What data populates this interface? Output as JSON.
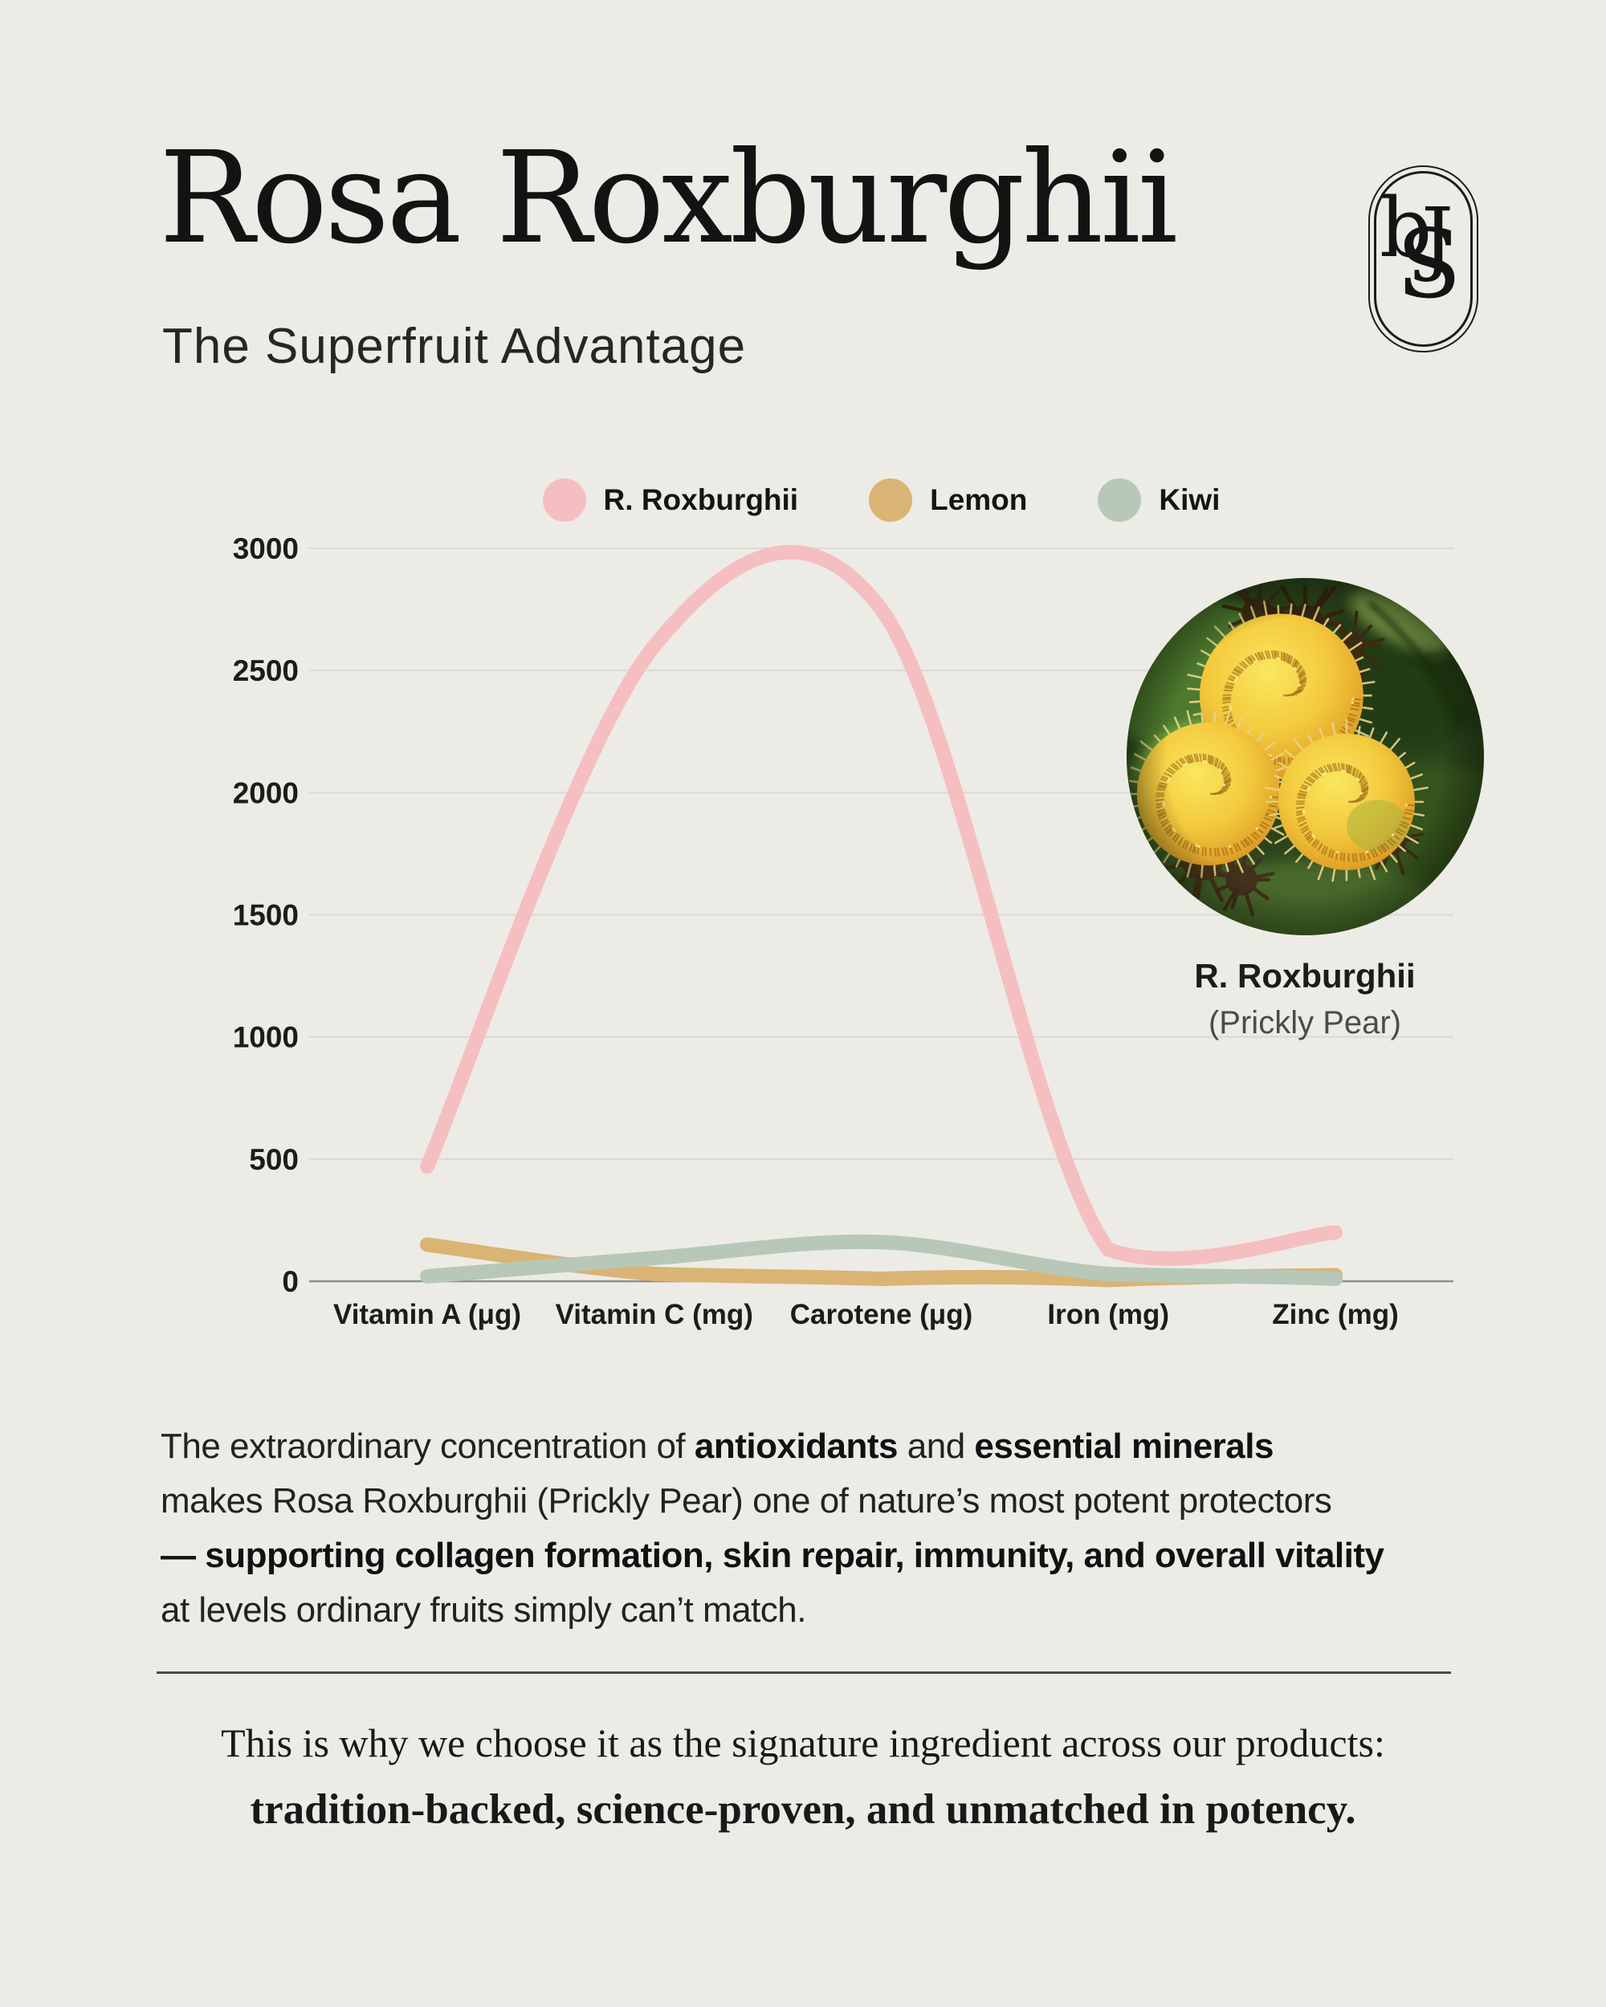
{
  "page": {
    "background": "#edebe6"
  },
  "header": {
    "title": "Rosa Roxburghii",
    "subtitle": "The Superfruit Advantage"
  },
  "logo": {
    "letters": [
      "b",
      "S",
      "J"
    ]
  },
  "chart_data": {
    "type": "line",
    "title": "",
    "categories": [
      "Vitamin A (μg)",
      "Vitamin C (mg)",
      "Carotene (μg)",
      "Iron (mg)",
      "Zinc (mg)"
    ],
    "series": [
      {
        "name": "R. Roxburghii",
        "color": "#f5bfc1",
        "values": [
          470,
          2600,
          2750,
          130,
          200
        ]
      },
      {
        "name": "Lemon",
        "color": "#d9b475",
        "values": [
          150,
          30,
          10,
          5,
          25
        ]
      },
      {
        "name": "Kiwi",
        "color": "#b7c8b8",
        "values": [
          20,
          95,
          160,
          30,
          10
        ]
      }
    ],
    "ylim": [
      0,
      3000
    ],
    "yticks": [
      0,
      500,
      1000,
      1500,
      2000,
      2500,
      3000
    ],
    "grid": "horizontal",
    "legend_position": "top",
    "xlabel": "",
    "ylabel": ""
  },
  "photo": {
    "caption_title": "R. Roxburghii",
    "caption_subtitle": "(Prickly Pear)"
  },
  "paragraph": {
    "lines": [
      [
        {
          "t": "The extraordinary concentration of "
        },
        {
          "t": "antioxidants",
          "b": true
        },
        {
          "t": " and "
        },
        {
          "t": "essential minerals",
          "b": true
        }
      ],
      [
        {
          "t": "makes Rosa Roxburghii (Prickly Pear) one of nature’s most potent protectors"
        }
      ],
      [
        {
          "t": "— supporting collagen formation, skin repair, immunity, and overall vitality",
          "b": true
        }
      ],
      [
        {
          "t": "at levels ordinary fruits simply can’t match."
        }
      ]
    ]
  },
  "footer": {
    "line1": "This is why we choose it as the signature ingredient across our products:",
    "line2": "tradition-backed, science-proven, and unmatched in potency."
  }
}
